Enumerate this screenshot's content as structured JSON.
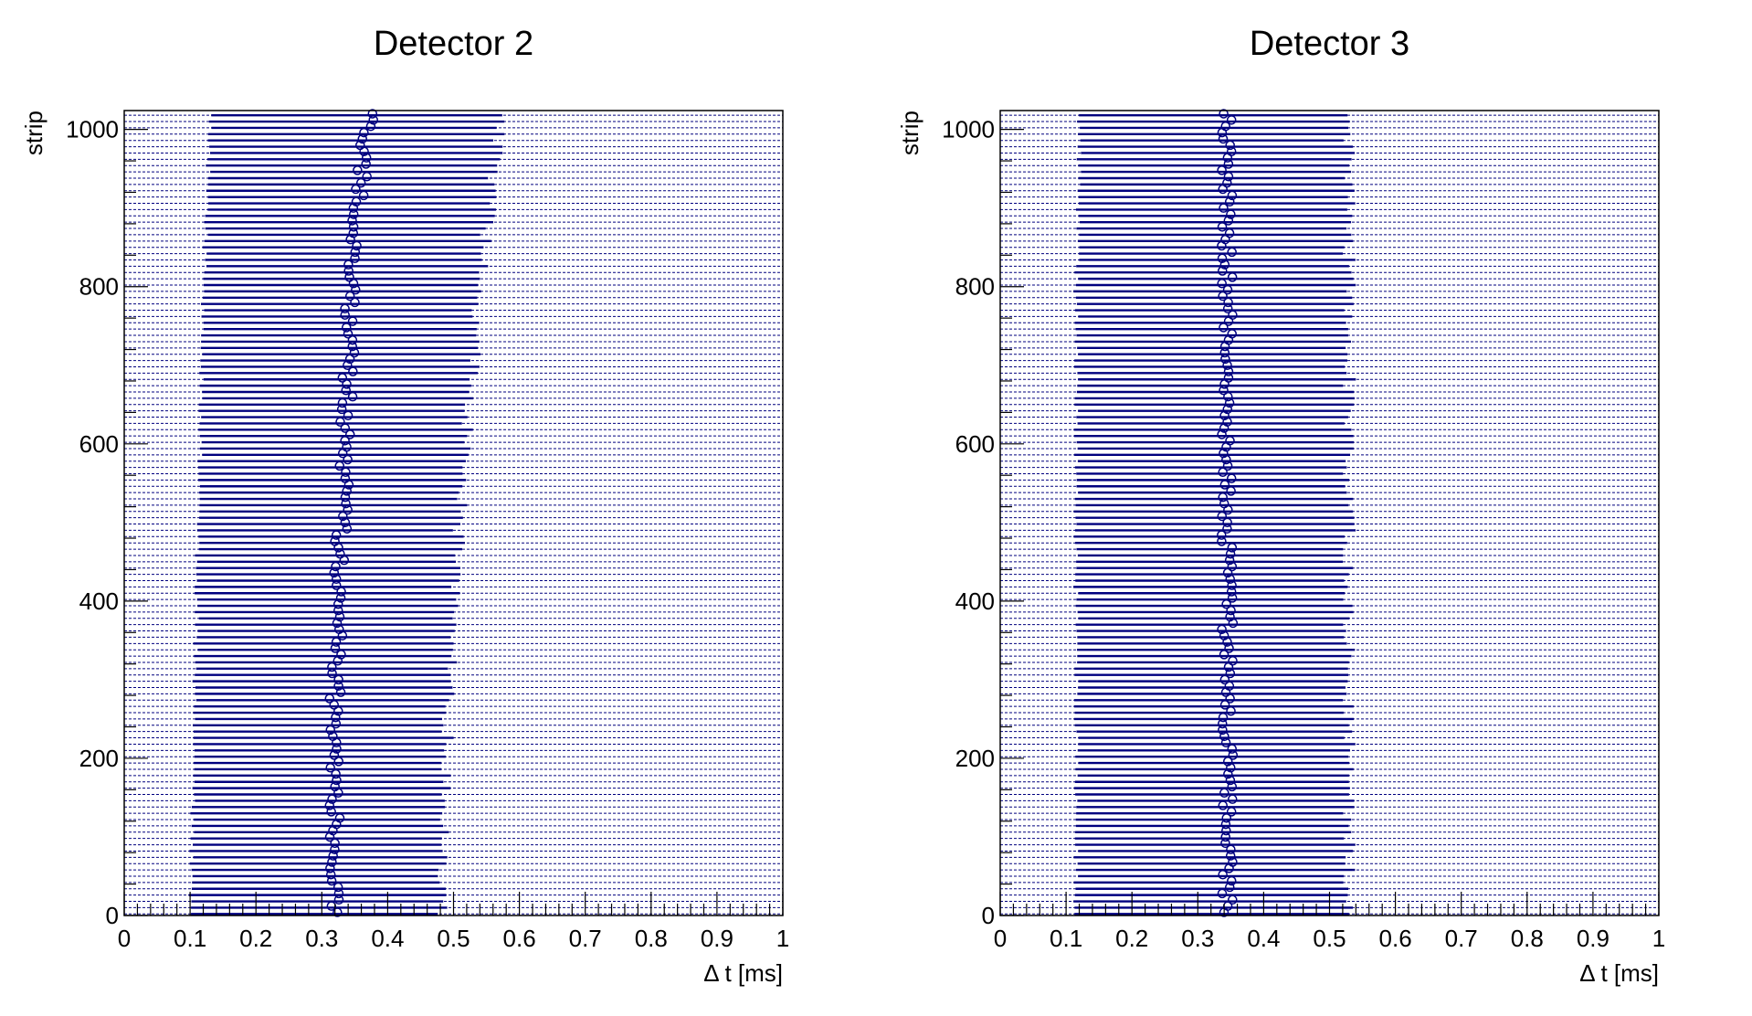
{
  "chart_data": [
    {
      "type": "scatter",
      "title": "Detector 2",
      "xlabel": "Δ t [ms]",
      "ylabel": "strip",
      "xlim": [
        0,
        1
      ],
      "ylim": [
        0,
        1024
      ],
      "xticks": [
        "0",
        "0.1",
        "0.2",
        "0.3",
        "0.4",
        "0.5",
        "0.6",
        "0.7",
        "0.8",
        "0.9",
        "1"
      ],
      "yticks": [
        "0",
        "200",
        "400",
        "600",
        "800",
        "1000"
      ],
      "color": "#00007f",
      "series": [
        {
          "style": "horizontal-band-per-strip",
          "band_start_ms": {
            "strip": [
              0,
              200,
              400,
              600,
              800,
              1000,
              1024
            ],
            "value": [
              0.1,
              0.105,
              0.11,
              0.115,
              0.12,
              0.13,
              0.13
            ]
          },
          "band_end_ms": {
            "strip": [
              0,
              200,
              400,
              600,
              800,
              1000,
              1024
            ],
            "value": [
              0.48,
              0.49,
              0.5,
              0.52,
              0.54,
              0.57,
              0.57
            ]
          },
          "dashed_background_range_ms": [
            0,
            1
          ]
        },
        {
          "style": "open-circle-markers",
          "strip": [
            0,
            100,
            200,
            300,
            400,
            500,
            600,
            700,
            800,
            900,
            1000,
            1024
          ],
          "peak_ms": [
            0.32,
            0.32,
            0.32,
            0.32,
            0.325,
            0.33,
            0.335,
            0.34,
            0.345,
            0.355,
            0.37,
            0.375
          ]
        }
      ]
    },
    {
      "type": "scatter",
      "title": "Detector 3",
      "xlabel": "Δ t [ms]",
      "ylabel": "strip",
      "xlim": [
        0,
        1
      ],
      "ylim": [
        0,
        1024
      ],
      "xticks": [
        "0",
        "0.1",
        "0.2",
        "0.3",
        "0.4",
        "0.5",
        "0.6",
        "0.7",
        "0.8",
        "0.9",
        "1"
      ],
      "yticks": [
        "0",
        "200",
        "400",
        "600",
        "800",
        "1000"
      ],
      "color": "#00007f",
      "series": [
        {
          "style": "horizontal-band-per-strip",
          "band_start_ms": {
            "strip": [
              0,
              200,
              400,
              600,
              800,
              1000,
              1024
            ],
            "value": [
              0.115,
              0.115,
              0.115,
              0.115,
              0.115,
              0.12,
              0.12
            ]
          },
          "band_end_ms": {
            "strip": [
              0,
              200,
              400,
              600,
              800,
              1000,
              1024
            ],
            "value": [
              0.53,
              0.53,
              0.53,
              0.53,
              0.53,
              0.53,
              0.53
            ]
          },
          "dashed_background_range_ms": [
            0,
            1
          ]
        },
        {
          "style": "open-circle-markers",
          "strip": [
            0,
            200,
            400,
            600,
            800,
            1000,
            1024
          ],
          "peak_ms": [
            0.345,
            0.345,
            0.345,
            0.345,
            0.345,
            0.345,
            0.345
          ]
        }
      ]
    }
  ]
}
